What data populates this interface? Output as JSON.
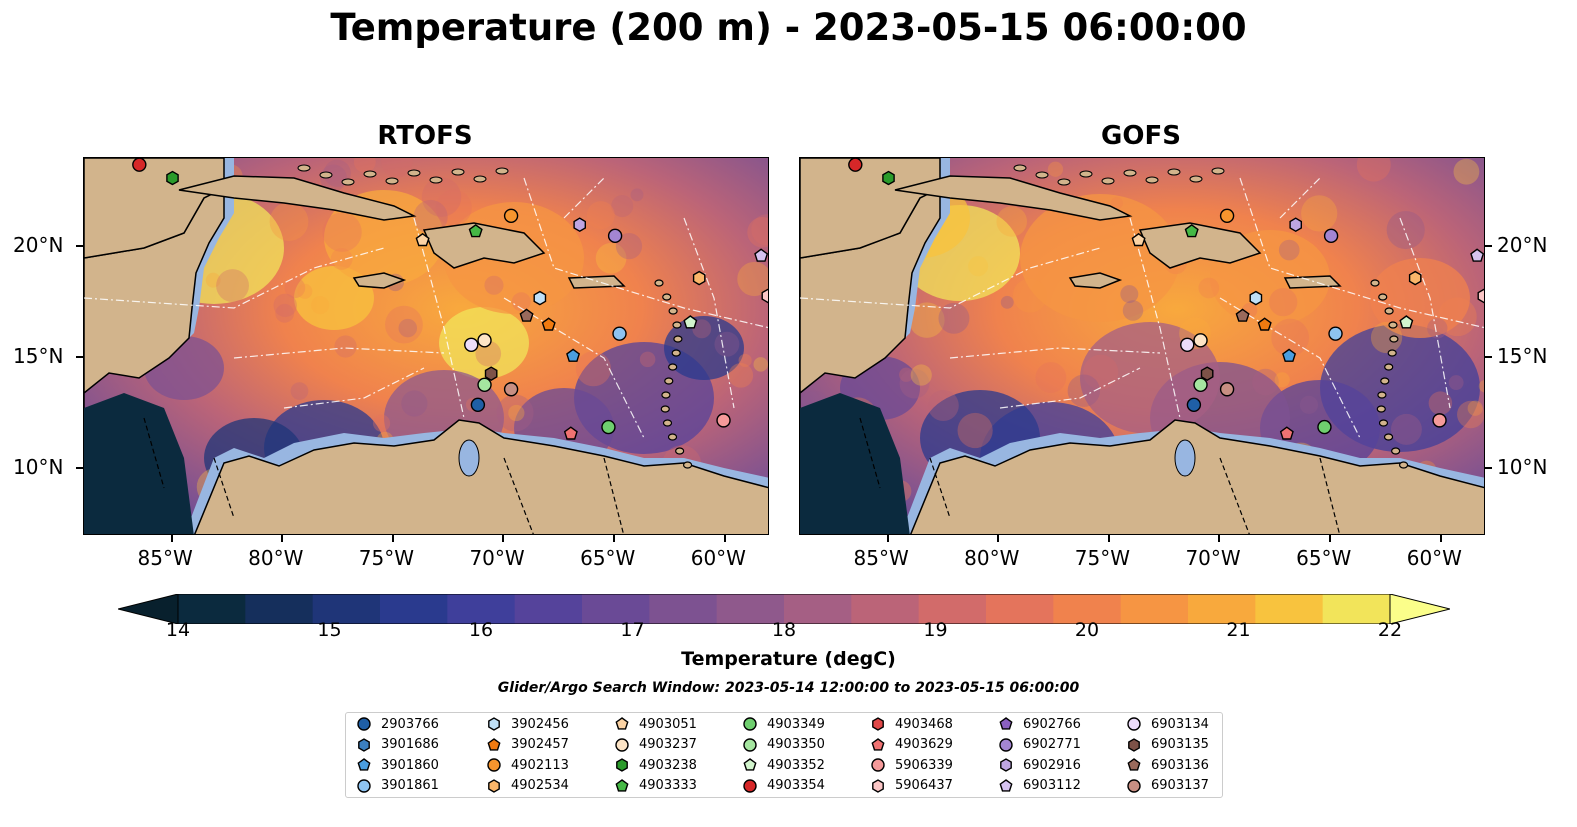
{
  "figure": {
    "title": "Temperature (200 m) - 2023-05-15 06:00:00",
    "search_window": "Glider/Argo Search Window: 2023-05-14 12:00:00 to 2023-05-15 06:00:00"
  },
  "colorbar": {
    "label": "Temperature (degC)",
    "min": 14,
    "max": 22,
    "step": 0.5,
    "extend": "both",
    "ticks": [
      "14",
      "15",
      "16",
      "17",
      "18",
      "19",
      "20",
      "21",
      "22"
    ],
    "colors": [
      "#0b2a3e",
      "#152f5c",
      "#1f3578",
      "#2a3a8e",
      "#3f3f9b",
      "#55439b",
      "#6a4a96",
      "#7d5291",
      "#8f598c",
      "#a55f84",
      "#bb6478",
      "#d26b6a",
      "#e4745c",
      "#f0824d",
      "#f69543",
      "#f8a93d",
      "#f8c33e",
      "#f2e45a"
    ],
    "over_color": "#fbfe8a",
    "under_color": "#08202d"
  },
  "chart_data": [
    {
      "type": "heatmap",
      "title": "RTOFS",
      "lon_range": [
        -89,
        -58
      ],
      "lat_range": [
        7,
        24
      ],
      "x_ticks": [
        "85°W",
        "80°W",
        "75°W",
        "70°W",
        "65°W",
        "60°W"
      ],
      "y_ticks": [
        "20°N",
        "15°N",
        "10°N"
      ],
      "y_ticks_side": "left",
      "floats": [
        {
          "id": "4903354",
          "lon": -86.5,
          "lat": 23.7
        },
        {
          "id": "4903238",
          "lon": -85.0,
          "lat": 23.1
        },
        {
          "id": "4902113",
          "lon": -69.7,
          "lat": 21.4
        },
        {
          "id": "6902916",
          "lon": -66.6,
          "lat": 21.0
        },
        {
          "id": "6902771",
          "lon": -65.0,
          "lat": 20.5
        },
        {
          "id": "4903051",
          "lon": -73.7,
          "lat": 20.3
        },
        {
          "id": "4903333",
          "lon": -71.3,
          "lat": 20.7
        },
        {
          "id": "6903112",
          "lon": -58.4,
          "lat": 19.6
        },
        {
          "id": "4902534",
          "lon": -61.2,
          "lat": 18.6
        },
        {
          "id": "3902456",
          "lon": -68.4,
          "lat": 17.7
        },
        {
          "id": "3902457",
          "lon": -68.0,
          "lat": 16.5
        },
        {
          "id": "6903136",
          "lon": -69.0,
          "lat": 16.9
        },
        {
          "id": "3901861",
          "lon": -64.8,
          "lat": 16.1
        },
        {
          "id": "6903134",
          "lon": -71.5,
          "lat": 15.6
        },
        {
          "id": "4903237",
          "lon": -70.9,
          "lat": 15.8
        },
        {
          "id": "3901860",
          "lon": -66.9,
          "lat": 15.1
        },
        {
          "id": "6903135",
          "lon": -70.6,
          "lat": 14.3
        },
        {
          "id": "4903350",
          "lon": -70.9,
          "lat": 13.8
        },
        {
          "id": "6903137",
          "lon": -69.7,
          "lat": 13.6
        },
        {
          "id": "2903766",
          "lon": -71.2,
          "lat": 12.9
        },
        {
          "id": "4903629",
          "lon": -67.0,
          "lat": 11.6
        },
        {
          "id": "4903349",
          "lon": -65.3,
          "lat": 11.9
        },
        {
          "id": "5906339",
          "lon": -60.1,
          "lat": 12.2
        },
        {
          "id": "4903352",
          "lon": -61.6,
          "lat": 16.6
        },
        {
          "id": "5906437",
          "lon": -58.1,
          "lat": 17.8
        }
      ]
    },
    {
      "type": "heatmap",
      "title": "GOFS",
      "lon_range": [
        -89,
        -58
      ],
      "lat_range": [
        7,
        24
      ],
      "x_ticks": [
        "85°W",
        "80°W",
        "75°W",
        "70°W",
        "65°W",
        "60°W"
      ],
      "y_ticks": [
        "20°N",
        "15°N",
        "10°N"
      ],
      "y_ticks_side": "right",
      "floats": [
        {
          "id": "4903354",
          "lon": -86.5,
          "lat": 23.7
        },
        {
          "id": "4903238",
          "lon": -85.0,
          "lat": 23.1
        },
        {
          "id": "4902113",
          "lon": -69.7,
          "lat": 21.4
        },
        {
          "id": "6902916",
          "lon": -66.6,
          "lat": 21.0
        },
        {
          "id": "6902771",
          "lon": -65.0,
          "lat": 20.5
        },
        {
          "id": "4903051",
          "lon": -73.7,
          "lat": 20.3
        },
        {
          "id": "4903333",
          "lon": -71.3,
          "lat": 20.7
        },
        {
          "id": "6903112",
          "lon": -58.4,
          "lat": 19.6
        },
        {
          "id": "4902534",
          "lon": -61.2,
          "lat": 18.6
        },
        {
          "id": "3902456",
          "lon": -68.4,
          "lat": 17.7
        },
        {
          "id": "3902457",
          "lon": -68.0,
          "lat": 16.5
        },
        {
          "id": "6903136",
          "lon": -69.0,
          "lat": 16.9
        },
        {
          "id": "3901861",
          "lon": -64.8,
          "lat": 16.1
        },
        {
          "id": "6903134",
          "lon": -71.5,
          "lat": 15.6
        },
        {
          "id": "4903237",
          "lon": -70.9,
          "lat": 15.8
        },
        {
          "id": "3901860",
          "lon": -66.9,
          "lat": 15.1
        },
        {
          "id": "6903135",
          "lon": -70.6,
          "lat": 14.3
        },
        {
          "id": "4903350",
          "lon": -70.9,
          "lat": 13.8
        },
        {
          "id": "6903137",
          "lon": -69.7,
          "lat": 13.6
        },
        {
          "id": "2903766",
          "lon": -71.2,
          "lat": 12.9
        },
        {
          "id": "4903629",
          "lon": -67.0,
          "lat": 11.6
        },
        {
          "id": "4903349",
          "lon": -65.3,
          "lat": 11.9
        },
        {
          "id": "5906339",
          "lon": -60.1,
          "lat": 12.2
        },
        {
          "id": "4903352",
          "lon": -61.6,
          "lat": 16.6
        },
        {
          "id": "5906437",
          "lon": -58.1,
          "lat": 17.8
        }
      ]
    }
  ],
  "legend": {
    "entries": [
      {
        "id": "2903766",
        "marker": "circle",
        "color": "#1f5fa6"
      },
      {
        "id": "3901686",
        "marker": "hexagon",
        "color": "#3b7fc0"
      },
      {
        "id": "3901860",
        "marker": "pentagon",
        "color": "#4a9ee0"
      },
      {
        "id": "3901861",
        "marker": "circle",
        "color": "#8ec3f0"
      },
      {
        "id": "3902456",
        "marker": "hexagon",
        "color": "#bfe0f7"
      },
      {
        "id": "3902457",
        "marker": "pentagon",
        "color": "#f07a10"
      },
      {
        "id": "4902113",
        "marker": "circle",
        "color": "#f7952e"
      },
      {
        "id": "4902534",
        "marker": "hexagon",
        "color": "#fbb66a"
      },
      {
        "id": "4903051",
        "marker": "pentagon",
        "color": "#fcd3a4"
      },
      {
        "id": "4903237",
        "marker": "circle",
        "color": "#fde4c6"
      },
      {
        "id": "4903238",
        "marker": "hexagon",
        "color": "#2b9b2b"
      },
      {
        "id": "4903333",
        "marker": "pentagon",
        "color": "#45b845"
      },
      {
        "id": "4903349",
        "marker": "circle",
        "color": "#6fcf6f"
      },
      {
        "id": "4903350",
        "marker": "circle",
        "color": "#a5e6a0"
      },
      {
        "id": "4903352",
        "marker": "pentagon",
        "color": "#d2f5cd"
      },
      {
        "id": "4903354",
        "marker": "circle",
        "color": "#d62728"
      },
      {
        "id": "4903468",
        "marker": "hexagon",
        "color": "#e04848"
      },
      {
        "id": "4903629",
        "marker": "pentagon",
        "color": "#f07272"
      },
      {
        "id": "5906339",
        "marker": "circle",
        "color": "#f59a9a"
      },
      {
        "id": "5906437",
        "marker": "hexagon",
        "color": "#fbc6c6"
      },
      {
        "id": "6902766",
        "marker": "pentagon",
        "color": "#8a60c0"
      },
      {
        "id": "6902771",
        "marker": "circle",
        "color": "#a385d2"
      },
      {
        "id": "6902916",
        "marker": "hexagon",
        "color": "#bea5e2"
      },
      {
        "id": "6903112",
        "marker": "pentagon",
        "color": "#d6c3f0"
      },
      {
        "id": "6903134",
        "marker": "circle",
        "color": "#ecdcfa"
      },
      {
        "id": "6903135",
        "marker": "hexagon",
        "color": "#7d5248"
      },
      {
        "id": "6903136",
        "marker": "pentagon",
        "color": "#9a6a5c"
      },
      {
        "id": "6903137",
        "marker": "circle",
        "color": "#c88f83"
      }
    ]
  }
}
